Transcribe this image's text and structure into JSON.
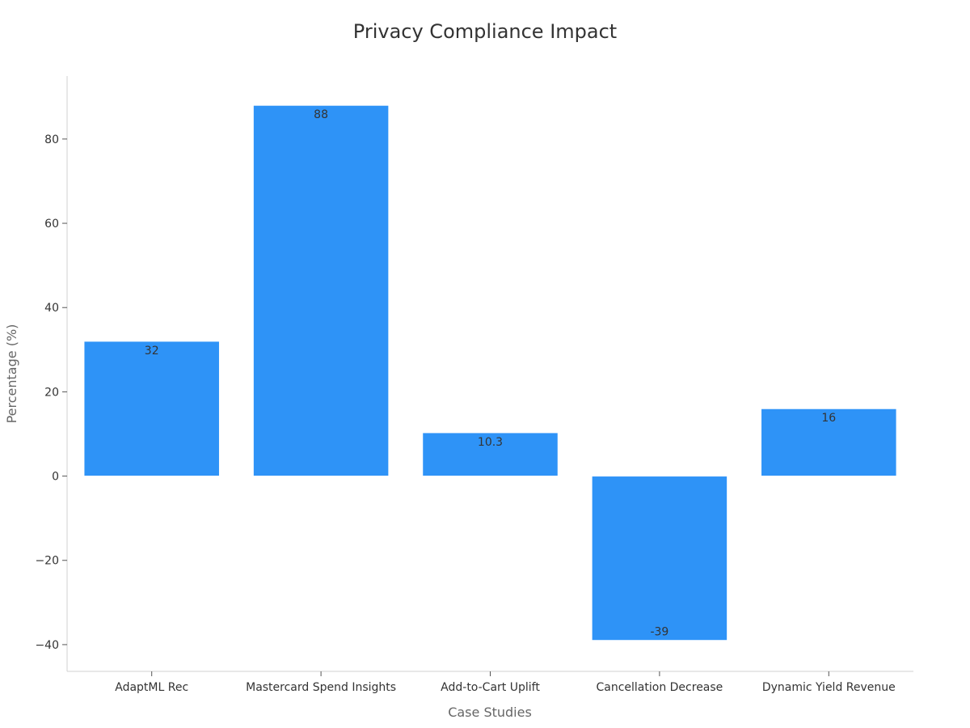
{
  "chart_data": {
    "type": "bar",
    "title": "Privacy Compliance Impact",
    "xlabel": "Case Studies",
    "ylabel": "Percentage (%)",
    "categories": [
      "AdaptML Rec",
      "Mastercard Spend Insights",
      "Add-to-Cart Uplift",
      "Cancellation Decrease",
      "Dynamic Yield Revenue"
    ],
    "values": [
      32,
      88,
      10.3,
      -39,
      16
    ],
    "value_labels": [
      "32",
      "88",
      "10.3",
      "-39",
      "16"
    ],
    "yticks": [
      -40,
      -20,
      0,
      20,
      40,
      60,
      80
    ],
    "ytick_labels": [
      "−40",
      "−20",
      "0",
      "20",
      "40",
      "60",
      "80"
    ],
    "ylim": [
      -46.35,
      94.95
    ],
    "grid": false,
    "legend": "none",
    "bar_color": "#2e93f7",
    "axis_color": "#d0d0d0"
  }
}
